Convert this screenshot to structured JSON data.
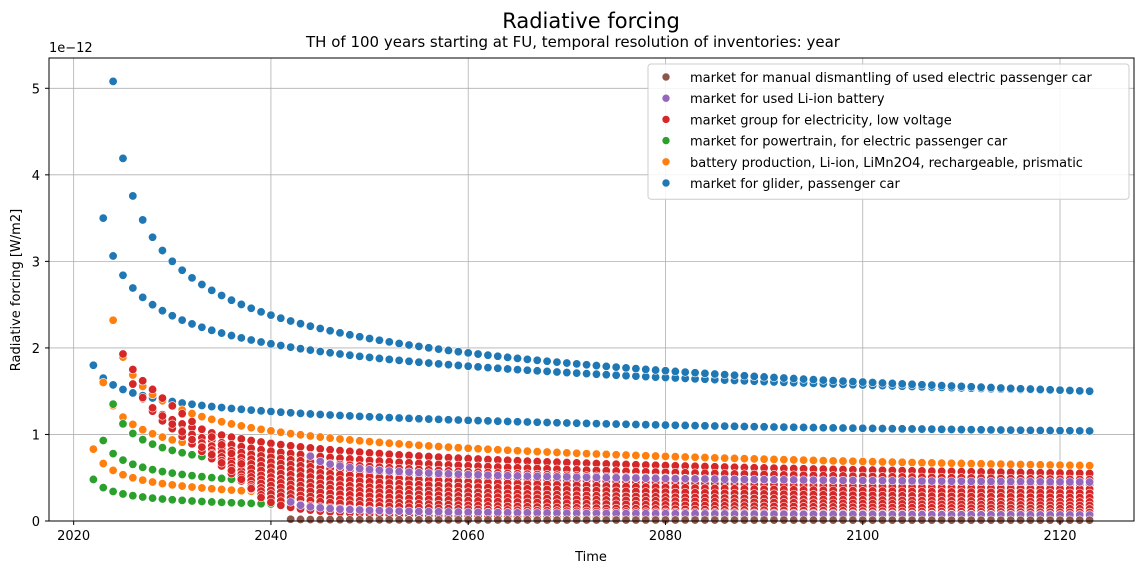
{
  "chart_data": {
    "type": "scatter",
    "title": "Radiative forcing",
    "subtitle": "TH of 100 years starting at FU, temporal resolution of inventories: year",
    "xlabel": "Time",
    "ylabel": "Radiative forcing [W/m2]",
    "y_scale_label": "1e−12",
    "xlim": [
      2017.5,
      2127.5
    ],
    "ylim": [
      0,
      5.35
    ],
    "xticks": [
      2020,
      2040,
      2060,
      2080,
      2100,
      2120
    ],
    "yticks": [
      0,
      1,
      2,
      3,
      4,
      5
    ],
    "grid": true,
    "legend_position": "top-right",
    "series": [
      {
        "name": "market for manual dismantling of used electric passenger car",
        "color": "#8c564b",
        "curves": [
          {
            "start": 2042,
            "end": 2123,
            "value_at_start": 0.02,
            "value_at_end": 0.01
          }
        ]
      },
      {
        "name": "market for used Li-ion battery",
        "color": "#9467bd",
        "curves": [
          {
            "start": 2042,
            "end": 2123,
            "value_at_start": 0.22,
            "value_at_end": 0.07
          },
          {
            "start": 2044,
            "end": 2123,
            "value_at_start": 0.75,
            "value_at_end": 0.45
          }
        ]
      },
      {
        "name": "market group for electricity, low voltage",
        "color": "#d62728",
        "curves": [
          {
            "start": 2025,
            "end": 2123,
            "value_at_start": 1.93,
            "value_at_end": 0.55
          },
          {
            "start": 2026,
            "end": 2123,
            "value_at_start": 1.75,
            "value_at_end": 0.48
          },
          {
            "start": 2027,
            "end": 2123,
            "value_at_start": 1.62,
            "value_at_end": 0.42
          },
          {
            "start": 2028,
            "end": 2123,
            "value_at_start": 1.52,
            "value_at_end": 0.37
          },
          {
            "start": 2029,
            "end": 2123,
            "value_at_start": 1.42,
            "value_at_end": 0.32
          },
          {
            "start": 2030,
            "end": 2123,
            "value_at_start": 1.33,
            "value_at_end": 0.27
          },
          {
            "start": 2031,
            "end": 2123,
            "value_at_start": 1.24,
            "value_at_end": 0.22
          },
          {
            "start": 2032,
            "end": 2123,
            "value_at_start": 1.15,
            "value_at_end": 0.18
          },
          {
            "start": 2033,
            "end": 2123,
            "value_at_start": 1.06,
            "value_at_end": 0.14
          },
          {
            "start": 2034,
            "end": 2123,
            "value_at_start": 0.97,
            "value_at_end": 0.1
          },
          {
            "start": 2035,
            "end": 2123,
            "value_at_start": 0.88,
            "value_at_end": 0.07
          },
          {
            "start": 2036,
            "end": 2123,
            "value_at_start": 0.78,
            "value_at_end": 0.04
          },
          {
            "start": 2037,
            "end": 2123,
            "value_at_start": 0.66,
            "value_at_end": 0.02
          }
        ]
      },
      {
        "name": "market for powertrain, for electric passenger car",
        "color": "#2ca02c",
        "curves": [
          {
            "start": 2022,
            "end": 2123,
            "value_at_start": 0.48,
            "value_at_end": 0.12
          },
          {
            "start": 2023,
            "end": 2123,
            "value_at_start": 0.93,
            "value_at_end": 0.3
          },
          {
            "start": 2024,
            "end": 2123,
            "value_at_start": 1.35,
            "value_at_end": 0.42
          }
        ]
      },
      {
        "name": "battery production, Li-ion, LiMn2O4, rechargeable, prismatic",
        "color": "#ff7f0e",
        "curves": [
          {
            "start": 2022,
            "end": 2123,
            "value_at_start": 0.83,
            "value_at_end": 0.2
          },
          {
            "start": 2023,
            "end": 2123,
            "value_at_start": 1.6,
            "value_at_end": 0.5
          },
          {
            "start": 2024,
            "end": 2123,
            "value_at_start": 2.32,
            "value_at_end": 0.64
          }
        ]
      },
      {
        "name": "market for glider, passenger car",
        "color": "#1f77b4",
        "curves": [
          {
            "start": 2022,
            "end": 2123,
            "value_at_start": 1.8,
            "value_at_end": 1.04
          },
          {
            "start": 2023,
            "end": 2123,
            "value_at_start": 3.5,
            "value_at_end": 1.5
          },
          {
            "start": 2024,
            "end": 2123,
            "value_at_start": 5.08,
            "value_at_end": 1.5
          }
        ]
      }
    ]
  }
}
